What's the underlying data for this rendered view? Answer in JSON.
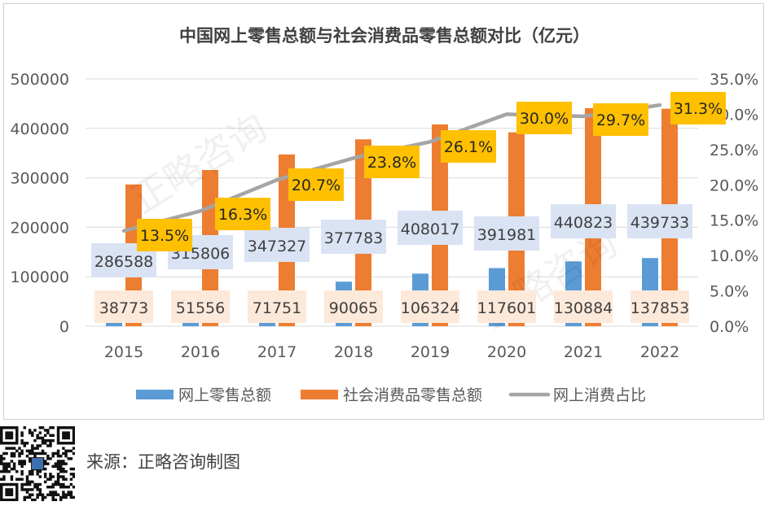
{
  "chart_data": {
    "type": "bar+line",
    "title": "中国网上零售总额与社会消费品零售总额对比（亿元）",
    "categories": [
      "2015",
      "2016",
      "2017",
      "2018",
      "2019",
      "2020",
      "2021",
      "2022"
    ],
    "series": [
      {
        "name": "网上零售总额",
        "type": "bar",
        "axis": "left",
        "color": "#5b9bd5",
        "values": [
          38773,
          51556,
          71751,
          90065,
          106324,
          117601,
          130884,
          137853
        ]
      },
      {
        "name": "社会消费品零售总额",
        "type": "bar",
        "axis": "left",
        "color": "#ed7d31",
        "values": [
          286588,
          315806,
          347327,
          377783,
          408017,
          391981,
          440823,
          439733
        ]
      },
      {
        "name": "网上消费占比",
        "type": "line",
        "axis": "right",
        "color": "#a5a5a5",
        "values": [
          13.5,
          16.3,
          20.7,
          23.8,
          26.1,
          30.0,
          29.7,
          31.3
        ],
        "labels": [
          "13.5%",
          "16.3%",
          "20.7%",
          "23.8%",
          "26.1%",
          "30.0%",
          "29.7%",
          "31.3%"
        ]
      }
    ],
    "y_left": {
      "min": 0,
      "max": 500000,
      "ticks": [
        "0",
        "100000",
        "200000",
        "300000",
        "400000",
        "500000"
      ]
    },
    "y_right": {
      "min": 0,
      "max": 35,
      "ticks": [
        "0.0%",
        "5.0%",
        "10.0%",
        "15.0%",
        "20.0%",
        "25.0%",
        "30.0%",
        "35.0%"
      ]
    },
    "legend_position": "bottom",
    "grid": true,
    "watermark": "正略咨询"
  },
  "footer": {
    "source": "来源：正略咨询制图"
  }
}
